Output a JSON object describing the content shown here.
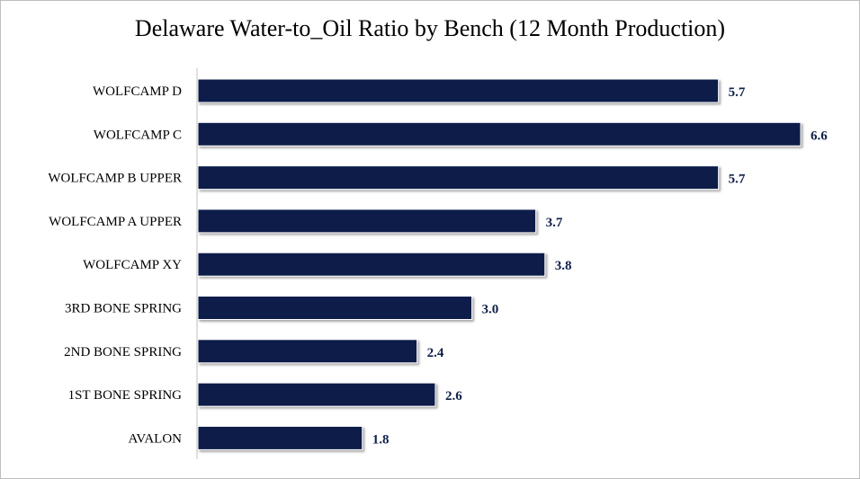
{
  "chart_data": {
    "type": "bar",
    "orientation": "horizontal",
    "title": "Delaware Water-to_Oil Ratio by Bench (12 Month Production)",
    "categories": [
      "WOLFCAMP D",
      "WOLFCAMP C",
      "WOLFCAMP B UPPER",
      "WOLFCAMP A UPPER",
      "WOLFCAMP XY",
      "3RD BONE SPRING",
      "2ND BONE SPRING",
      "1ST BONE SPRING",
      "AVALON"
    ],
    "values": [
      5.7,
      6.6,
      5.7,
      3.7,
      3.8,
      3.0,
      2.4,
      2.6,
      1.8
    ],
    "data_labels": [
      "5.7",
      "6.6",
      "5.7",
      "3.7",
      "3.8",
      "3.0",
      "2.4",
      "2.6",
      "1.8"
    ],
    "xlim": [
      0,
      6.6
    ],
    "xlabel": "",
    "ylabel": "",
    "grid": false,
    "legend": "none",
    "bar_color": "#0f1f4a"
  }
}
